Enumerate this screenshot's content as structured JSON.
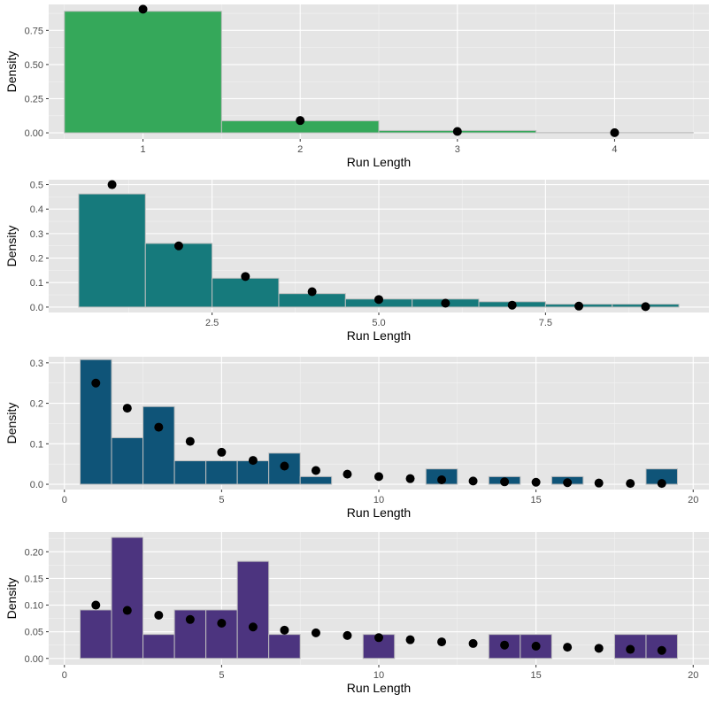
{
  "style": {
    "panel_bg": "#e5e5e5",
    "grid_major": "#ffffff",
    "bar_edge": "#bfbfbf",
    "point_color": "#000000"
  },
  "chart_data": [
    {
      "type": "bar",
      "bar_color": "#35a85a",
      "xlabel": "Run Length",
      "ylabel": "Density",
      "xlim": [
        0.4,
        4.6
      ],
      "ylim": [
        -0.045,
        0.94
      ],
      "x_ticks": [
        1,
        2,
        3,
        4
      ],
      "x_tick_labels": [
        "1",
        "2",
        "3",
        "4"
      ],
      "y_ticks": [
        0,
        0.25,
        0.5,
        0.75
      ],
      "y_tick_labels": [
        "0.00",
        "0.25",
        "0.50",
        "0.75"
      ],
      "bars": {
        "x": [
          1,
          2,
          3,
          4
        ],
        "values": [
          0.89,
          0.088,
          0.017,
          0.002
        ]
      },
      "points": {
        "x": [
          1,
          2,
          3,
          4
        ],
        "values": [
          0.905,
          0.09,
          0.01,
          0.001
        ]
      }
    },
    {
      "type": "bar",
      "bar_color": "#167a7c",
      "xlabel": "Run Length",
      "ylabel": "Density",
      "xlim": [
        0.05,
        9.95
      ],
      "ylim": [
        -0.022,
        0.52
      ],
      "x_ticks": [
        2.5,
        5.0,
        7.5
      ],
      "x_tick_labels": [
        "2.5",
        "5.0",
        "7.5"
      ],
      "y_ticks": [
        0,
        0.1,
        0.2,
        0.3,
        0.4,
        0.5
      ],
      "y_tick_labels": [
        "0.0",
        "0.1",
        "0.2",
        "0.3",
        "0.4",
        "0.5"
      ],
      "bars": {
        "x": [
          1,
          2,
          3,
          4,
          5,
          6,
          7,
          8,
          9
        ],
        "values": [
          0.462,
          0.26,
          0.118,
          0.055,
          0.033,
          0.033,
          0.022,
          0.012,
          0.012
        ]
      },
      "points": {
        "x": [
          1,
          2,
          3,
          4,
          5,
          6,
          7,
          8,
          9
        ],
        "values": [
          0.5,
          0.25,
          0.125,
          0.063,
          0.031,
          0.016,
          0.008,
          0.004,
          0.002
        ]
      }
    },
    {
      "type": "bar",
      "bar_color": "#0f5478",
      "xlabel": "Run Length",
      "ylabel": "Density",
      "xlim": [
        -0.5,
        20.5
      ],
      "ylim": [
        -0.013,
        0.315
      ],
      "x_ticks": [
        0,
        5,
        10,
        15,
        20
      ],
      "x_tick_labels": [
        "0",
        "5",
        "10",
        "15",
        "20"
      ],
      "y_ticks": [
        0,
        0.1,
        0.2,
        0.3
      ],
      "y_tick_labels": [
        "0.0",
        "0.1",
        "0.2",
        "0.3"
      ],
      "bars": {
        "x": [
          1,
          2,
          3,
          4,
          5,
          6,
          7,
          8,
          9,
          10,
          11,
          12,
          13,
          14,
          15,
          16,
          17,
          18,
          19
        ],
        "values": [
          0.308,
          0.115,
          0.192,
          0.058,
          0.058,
          0.058,
          0.077,
          0.019,
          0,
          0,
          0,
          0.038,
          0,
          0.019,
          0,
          0.019,
          0,
          0,
          0.038
        ]
      },
      "points": {
        "x": [
          1,
          2,
          3,
          4,
          5,
          6,
          7,
          8,
          9,
          10,
          11,
          12,
          13,
          14,
          15,
          16,
          17,
          18,
          19
        ],
        "values": [
          0.25,
          0.188,
          0.141,
          0.106,
          0.079,
          0.059,
          0.045,
          0.034,
          0.025,
          0.019,
          0.014,
          0.011,
          0.008,
          0.006,
          0.005,
          0.004,
          0.003,
          0.002,
          0.002
        ]
      }
    },
    {
      "type": "bar",
      "bar_color": "#4c347f",
      "xlabel": "Run Length",
      "ylabel": "Density",
      "xlim": [
        -0.5,
        20.5
      ],
      "ylim": [
        -0.012,
        0.237
      ],
      "x_ticks": [
        0,
        5,
        10,
        15,
        20
      ],
      "x_tick_labels": [
        "0",
        "5",
        "10",
        "15",
        "20"
      ],
      "y_ticks": [
        0,
        0.05,
        0.1,
        0.15,
        0.2
      ],
      "y_tick_labels": [
        "0.00",
        "0.05",
        "0.10",
        "0.15",
        "0.20"
      ],
      "bars": {
        "x": [
          1,
          2,
          3,
          4,
          5,
          6,
          7,
          8,
          9,
          10,
          11,
          12,
          13,
          14,
          15,
          16,
          17,
          18,
          19
        ],
        "values": [
          0.091,
          0.227,
          0.045,
          0.091,
          0.091,
          0.182,
          0.045,
          0,
          0,
          0.045,
          0,
          0,
          0,
          0.045,
          0.045,
          0,
          0,
          0.045,
          0.045
        ]
      },
      "points": {
        "x": [
          1,
          2,
          3,
          4,
          5,
          6,
          7,
          8,
          9,
          10,
          11,
          12,
          13,
          14,
          15,
          16,
          17,
          18,
          19
        ],
        "values": [
          0.1,
          0.09,
          0.081,
          0.073,
          0.066,
          0.059,
          0.053,
          0.048,
          0.043,
          0.039,
          0.035,
          0.031,
          0.028,
          0.025,
          0.023,
          0.021,
          0.019,
          0.017,
          0.015
        ]
      }
    }
  ]
}
